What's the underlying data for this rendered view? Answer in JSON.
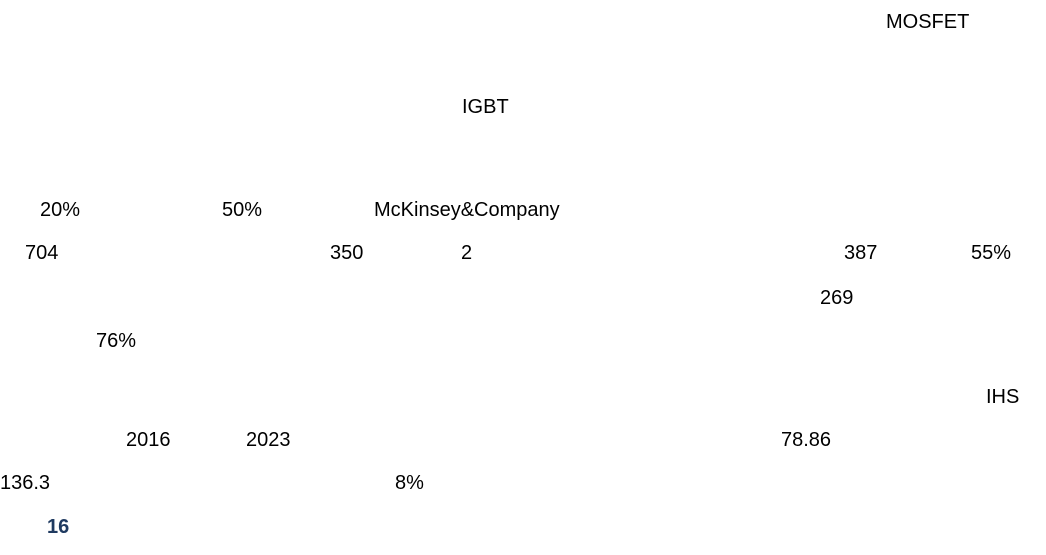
{
  "lines": [
    [
      "MOSFET"
    ],
    [
      "IGBT"
    ],
    [
      "20%",
      "50%",
      "McKinsey&Company"
    ],
    [
      "704",
      "350",
      "2",
      "387",
      "55%"
    ],
    [
      "269"
    ],
    [
      "76%"
    ],
    [
      "IHS"
    ],
    [
      "2016",
      "2023",
      "78.86"
    ],
    [
      "136.3",
      "8%"
    ]
  ],
  "page_number": "16"
}
